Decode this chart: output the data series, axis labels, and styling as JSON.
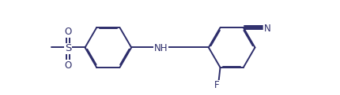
{
  "bg_color": "#ffffff",
  "line_color": "#2d2d6b",
  "text_color": "#2d2d6b",
  "bond_lw": 1.4,
  "dbo": 0.013,
  "fs": 8.5,
  "fig_w": 4.3,
  "fig_h": 1.21,
  "dpi": 100,
  "xlim": [
    0,
    4.3
  ],
  "ylim": [
    0,
    1.21
  ],
  "r1cx": 1.35,
  "r1cy": 0.605,
  "r2cx": 2.95,
  "r2cy": 0.605,
  "ring_r": 0.3
}
